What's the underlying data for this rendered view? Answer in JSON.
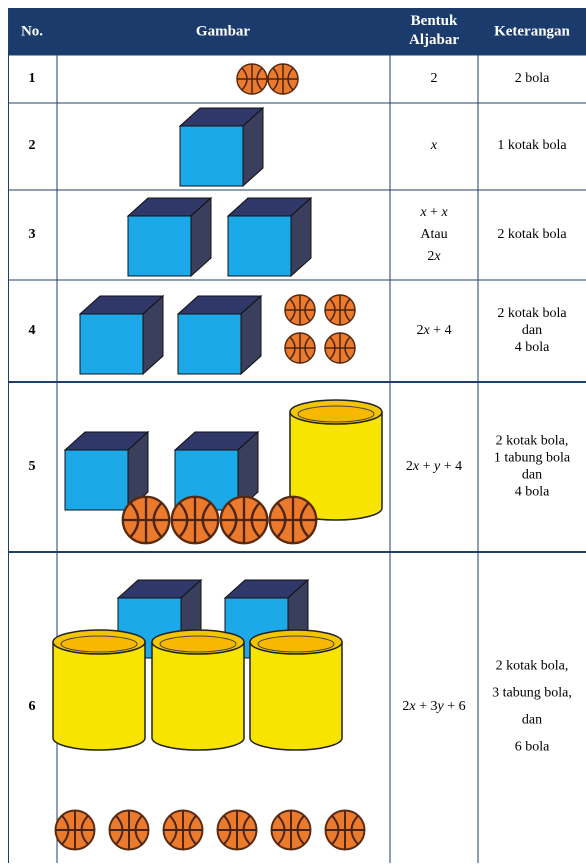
{
  "table": {
    "header": [
      "No.",
      "Gambar",
      "Bentuk Aljabar",
      "Keterangan"
    ],
    "rows": [
      {
        "no": "1",
        "aljabar": [
          "2"
        ],
        "keterangan": [
          "2 bola"
        ]
      },
      {
        "no": "2",
        "aljabar": [
          "x"
        ],
        "keterangan": [
          "1 kotak bola"
        ]
      },
      {
        "no": "3",
        "aljabar": [
          "x + x",
          "Atau",
          "2x"
        ],
        "keterangan": [
          "2 kotak bola"
        ]
      },
      {
        "no": "4",
        "aljabar": [
          "2x + 4"
        ],
        "keterangan": [
          "2 kotak bola",
          "dan",
          "4 bola"
        ]
      },
      {
        "no": "5",
        "aljabar": [
          "2x + y + 4"
        ],
        "keterangan": [
          "2 kotak bola,",
          "1 tabung bola",
          "dan",
          "4 bola"
        ]
      },
      {
        "no": "6",
        "aljabar": [
          "2x + 3y + 6"
        ],
        "keterangan": [
          "2 kotak bola,",
          "3 tabung bola,",
          "dan",
          "6 bola"
        ]
      }
    ]
  }
}
